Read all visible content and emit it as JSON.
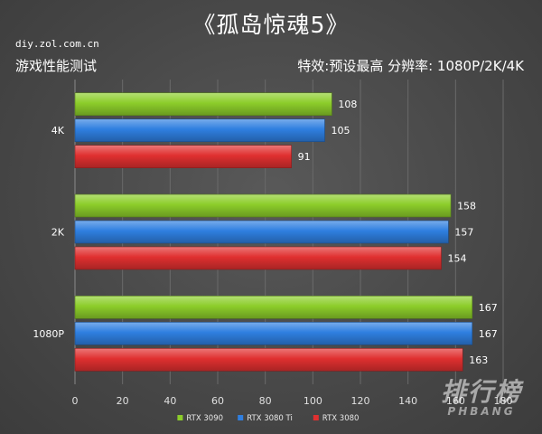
{
  "header": {
    "title": "《孤岛惊魂5》",
    "source": "diy.zol.com.cn",
    "subtitle_left": "游戏性能测试",
    "subtitle_right": "特效:预设最高   分辨率: 1080P/2K/4K"
  },
  "watermark": {
    "cn": "排行榜",
    "en": "PHBANG"
  },
  "chart_data": {
    "type": "bar",
    "orientation": "horizontal",
    "title": "《孤岛惊魂5》",
    "categories": [
      "4K",
      "2K",
      "1080P"
    ],
    "series": [
      {
        "name": "RTX 3090",
        "color": "#8ccd2a",
        "values": [
          108,
          158,
          167
        ]
      },
      {
        "name": "RTX 3080 Ti",
        "color": "#2f7fe0",
        "values": [
          105,
          157,
          167
        ]
      },
      {
        "name": "RTX 3080",
        "color": "#e03030",
        "values": [
          91,
          154,
          163
        ]
      }
    ],
    "xlim": [
      0,
      180
    ],
    "xticks": [
      0,
      20,
      40,
      60,
      80,
      100,
      120,
      140,
      160,
      180
    ],
    "grid": true,
    "legend_position": "bottom"
  }
}
